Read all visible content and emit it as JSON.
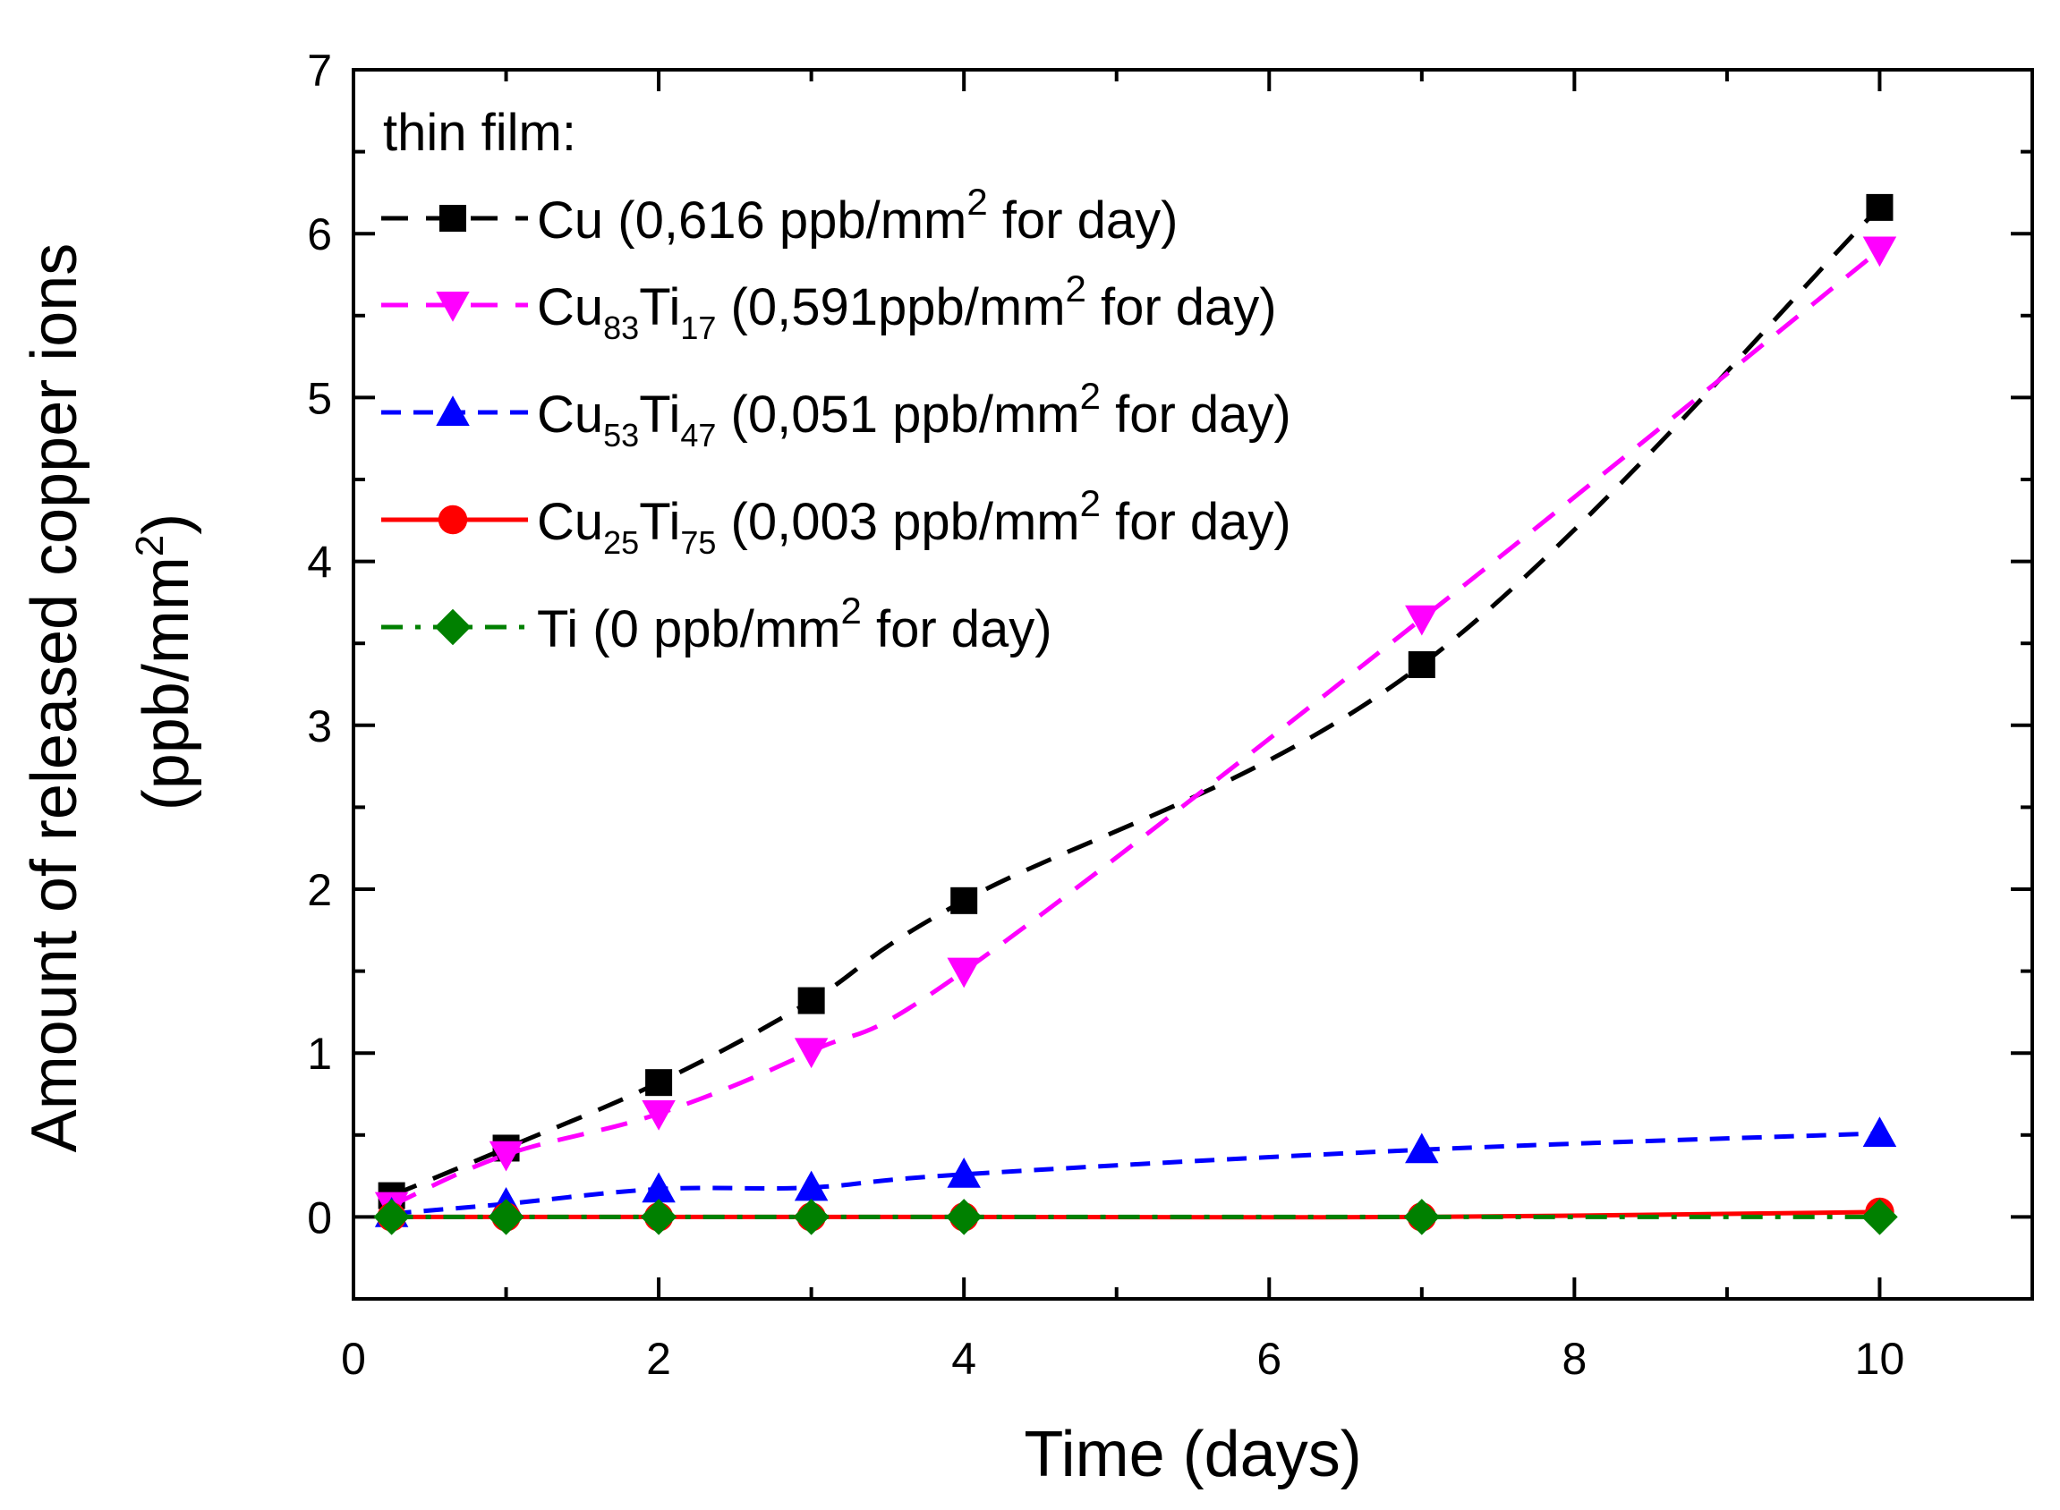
{
  "chart_data": {
    "type": "line",
    "xlabel": "Time (days)",
    "ylabel_line1": "Amount of released copper ions",
    "ylabel_line2": "(ppb/mm",
    "ylabel_sup": "2",
    "ylabel_close": ")",
    "xlim": [
      0,
      11
    ],
    "ylim": [
      -0.5,
      7
    ],
    "x_ticks": [
      0,
      2,
      4,
      6,
      8,
      10
    ],
    "y_ticks": [
      0,
      1,
      2,
      3,
      4,
      5,
      6,
      7
    ],
    "legend_title": "thin film:",
    "legend_position": "top-left",
    "series": [
      {
        "id": "cu",
        "color": "#000000",
        "marker": "square",
        "dash": "dashed",
        "x": [
          0.25,
          1,
          2,
          3,
          4,
          7,
          10
        ],
        "y": [
          0.13,
          0.42,
          0.82,
          1.32,
          1.93,
          3.37,
          6.16
        ],
        "legend_parts": [
          {
            "text": "Cu (0,616 ppb/mm",
            "style": "normal"
          },
          {
            "text": "2",
            "style": "sup"
          },
          {
            "text": " for day)",
            "style": "normal"
          }
        ]
      },
      {
        "id": "cu83ti17",
        "color": "#ff00ff",
        "marker": "triangle-down",
        "dash": "dashed",
        "x": [
          0.25,
          1,
          2,
          3,
          4,
          7,
          10
        ],
        "y": [
          0.07,
          0.38,
          0.63,
          1.01,
          1.5,
          3.65,
          5.9
        ],
        "legend_parts": [
          {
            "text": "Cu",
            "style": "normal"
          },
          {
            "text": "83",
            "style": "sub"
          },
          {
            "text": "Ti",
            "style": "normal"
          },
          {
            "text": "17",
            "style": "sub"
          },
          {
            "text": " (0,591ppb/mm",
            "style": "normal"
          },
          {
            "text": "2",
            "style": "sup"
          },
          {
            "text": " for day)",
            "style": "normal"
          }
        ]
      },
      {
        "id": "cu53ti47",
        "color": "#0000ff",
        "marker": "triangle-up",
        "dash": "short-dashed",
        "x": [
          0.25,
          1,
          2,
          3,
          4,
          7,
          10
        ],
        "y": [
          0.02,
          0.08,
          0.17,
          0.18,
          0.26,
          0.41,
          0.51
        ],
        "legend_parts": [
          {
            "text": "Cu",
            "style": "normal"
          },
          {
            "text": "53",
            "style": "sub"
          },
          {
            "text": "Ti",
            "style": "normal"
          },
          {
            "text": "47",
            "style": "sub"
          },
          {
            "text": " (0,051 ppb/mm",
            "style": "normal"
          },
          {
            "text": "2",
            "style": "sup"
          },
          {
            "text": " for day)",
            "style": "normal"
          }
        ]
      },
      {
        "id": "cu25ti75",
        "color": "#ff0000",
        "marker": "circle",
        "dash": "solid",
        "x": [
          0.25,
          1,
          2,
          3,
          4,
          7,
          10
        ],
        "y": [
          0.0,
          0.0,
          0.0,
          0.0,
          0.0,
          0.0,
          0.03
        ],
        "legend_parts": [
          {
            "text": "Cu",
            "style": "normal"
          },
          {
            "text": "25",
            "style": "sub"
          },
          {
            "text": "Ti",
            "style": "normal"
          },
          {
            "text": "75",
            "style": "sub"
          },
          {
            "text": " (0,003 ppb/mm",
            "style": "normal"
          },
          {
            "text": "2",
            "style": "sup"
          },
          {
            "text": " for day)",
            "style": "normal"
          }
        ]
      },
      {
        "id": "ti",
        "color": "#008000",
        "marker": "diamond",
        "dash": "dash-dot",
        "x": [
          0.25,
          1,
          2,
          3,
          4,
          7,
          10
        ],
        "y": [
          0.0,
          0.0,
          0.0,
          0.0,
          0.0,
          0.0,
          0.0
        ],
        "legend_parts": [
          {
            "text": "Ti (0 ppb/mm",
            "style": "normal"
          },
          {
            "text": "2",
            "style": "sup"
          },
          {
            "text": " for day)",
            "style": "normal"
          }
        ]
      }
    ]
  }
}
